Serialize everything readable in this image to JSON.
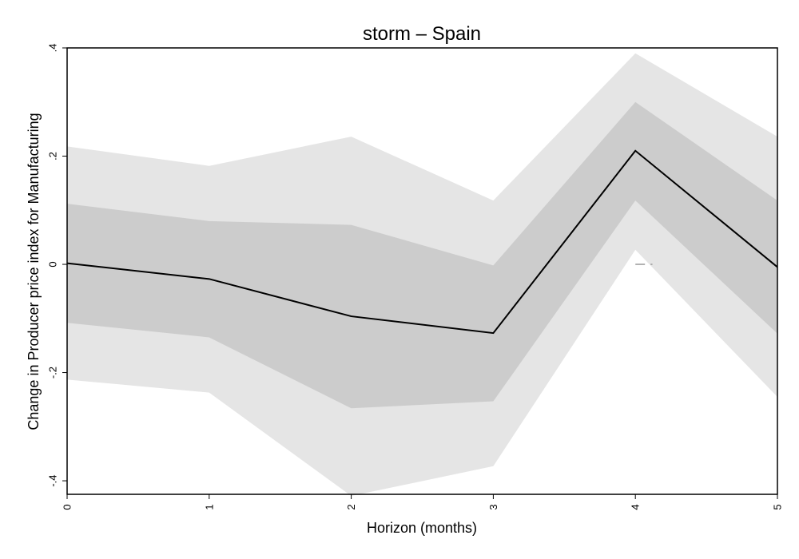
{
  "chart_data": {
    "type": "line",
    "title": "storm – Spain",
    "xlabel": "Horizon (months)",
    "ylabel": "Change in Producer price index for Manufacturing",
    "x": [
      0,
      1,
      2,
      3,
      4,
      5
    ],
    "xticks": [
      "0",
      "1",
      "2",
      "3",
      "4",
      "5"
    ],
    "xlim": [
      0,
      5
    ],
    "ylim": [
      -0.425,
      0.4
    ],
    "yticks": [
      {
        "value": -0.4,
        "label": "-.4"
      },
      {
        "value": -0.2,
        "label": "-.2"
      },
      {
        "value": 0,
        "label": "0"
      },
      {
        "value": 0.2,
        "label": ".2"
      },
      {
        "value": 0.4,
        "label": ".4"
      }
    ],
    "grid": false,
    "legend": "none",
    "series": [
      {
        "role": "estimate",
        "values": [
          0.002,
          -0.027,
          -0.096,
          -0.127,
          0.21,
          -0.005
        ]
      },
      {
        "role": "inner band upper",
        "values": [
          0.112,
          0.08,
          0.073,
          -0.002,
          0.3,
          0.118
        ]
      },
      {
        "role": "inner band lower",
        "values": [
          -0.108,
          -0.135,
          -0.266,
          -0.253,
          0.118,
          -0.128
        ]
      },
      {
        "role": "outer band upper",
        "values": [
          0.218,
          0.182,
          0.236,
          0.118,
          0.39,
          0.236
        ]
      },
      {
        "role": "outer band lower",
        "values": [
          -0.213,
          -0.237,
          -0.428,
          -0.373,
          0.027,
          -0.245
        ]
      }
    ],
    "reference_line": {
      "y": 0,
      "x_range": [
        4,
        4.12
      ],
      "style": "dashed"
    },
    "colors": {
      "outer_band": "#e5e5e5",
      "inner_band": "#cccccc",
      "line": "#000000",
      "reference": "#999999"
    }
  }
}
